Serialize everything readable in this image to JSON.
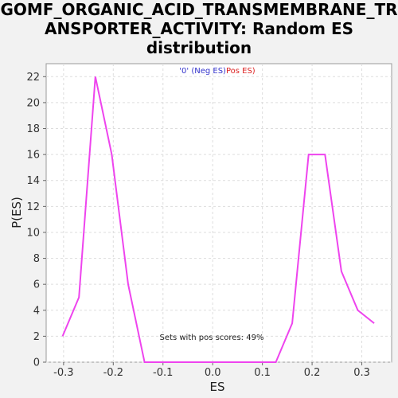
{
  "chart_data": {
    "type": "line",
    "title_lines": [
      "GOMF_ORGANIC_ACID_TRANSMEMBRANE_TR",
      "ANSPORTER_ACTIVITY: Random ES",
      "distribution"
    ],
    "xlabel": "ES",
    "ylabel": "P(ES)",
    "xlim": [
      -0.335,
      0.36
    ],
    "ylim": [
      0,
      23
    ],
    "xticks": [
      -0.3,
      -0.2,
      -0.1,
      0.0,
      0.1,
      0.2,
      0.3
    ],
    "xtick_labels": [
      "-0.3",
      "-0.2",
      "-0.1",
      "0.0",
      "0.1",
      "0.2",
      "0.3"
    ],
    "yticks": [
      0,
      2,
      4,
      6,
      8,
      10,
      12,
      14,
      16,
      18,
      20,
      22
    ],
    "ytick_labels": [
      "0",
      "2",
      "4",
      "6",
      "8",
      "10",
      "12",
      "14",
      "16",
      "18",
      "20",
      "22"
    ],
    "grid": true,
    "legend": {
      "position": "top-center",
      "neg_label": "'0' (Neg ES)",
      "pos_label": "Pos ES)",
      "neg_color": "#3333cc",
      "pos_color": "#dd2222"
    },
    "annotation": "Sets with pos scores: 49%",
    "line_color": "#ee44ee",
    "series": [
      {
        "x": [
          -0.302,
          -0.269,
          -0.236,
          -0.203,
          -0.17,
          -0.137,
          -0.104,
          -0.071,
          -0.038,
          -0.005,
          0.028,
          0.061,
          0.094,
          0.127,
          0.16,
          0.193,
          0.226,
          0.259,
          0.292,
          0.325
        ],
        "values": [
          2,
          5,
          22,
          16,
          6,
          0,
          0,
          0,
          0,
          0,
          0,
          0,
          0,
          0,
          3,
          16,
          16,
          7,
          4,
          3
        ]
      }
    ]
  }
}
